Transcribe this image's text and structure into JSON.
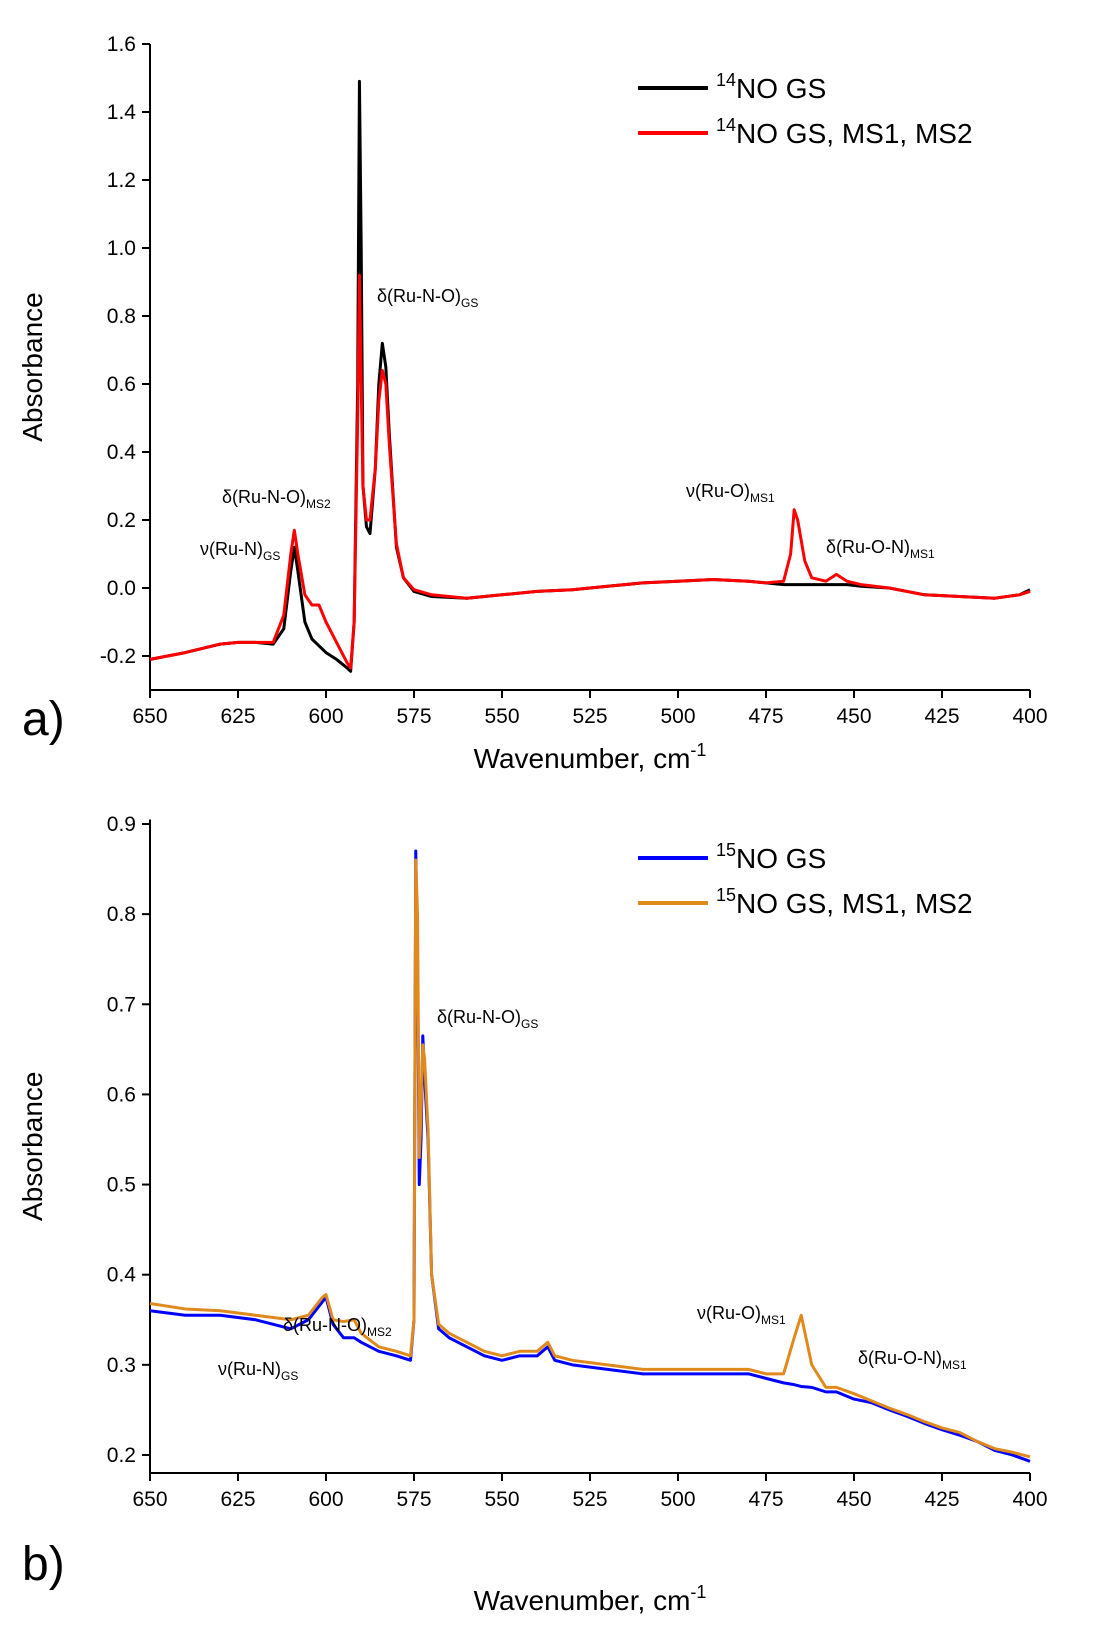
{
  "chart_data": [
    {
      "type": "line",
      "panel": "a)",
      "x_label": "Wavenumber, cm",
      "x_label_sup": "-1",
      "y_label": "Absorbance",
      "xlim": [
        650,
        400
      ],
      "xticks": [
        650,
        625,
        600,
        575,
        550,
        525,
        500,
        475,
        450,
        425,
        400
      ],
      "ylim": [
        -0.3,
        1.6
      ],
      "yticks": [
        -0.2,
        {
          "value": 0,
          "label": "0.0"
        },
        0.2,
        0.4,
        0.6,
        0.8,
        {
          "value": 1,
          "label": "1.0"
        },
        1.2,
        1.4,
        1.6
      ],
      "annotations": [
        {
          "text": "ν(Ru-N)",
          "sub": "GS"
        },
        {
          "text": "δ(Ru-N-O)",
          "sub": "MS2"
        },
        {
          "text": "δ(Ru-N-O)",
          "sub": "GS"
        },
        {
          "text": "ν(Ru-O)",
          "sub": "MS1"
        },
        {
          "text": "δ(Ru-O-N)",
          "sub": "MS1"
        }
      ],
      "x": [
        650,
        640,
        630,
        625,
        620,
        615,
        612,
        610,
        609,
        608,
        606,
        604,
        602,
        600,
        597,
        594,
        593,
        592,
        591,
        590.5,
        590,
        589.5,
        588.5,
        587.5,
        586,
        585,
        584,
        583,
        582,
        580,
        578,
        575,
        570,
        560,
        550,
        540,
        530,
        520,
        510,
        500,
        490,
        480,
        475,
        470,
        468,
        467,
        466,
        464,
        462,
        458,
        455,
        452,
        448,
        440,
        430,
        420,
        410,
        403,
        400
      ],
      "series": [
        {
          "name": "NO GS",
          "name_sup": "14",
          "color": "#000000",
          "values": [
            -0.21,
            -0.19,
            -0.165,
            -0.16,
            -0.16,
            -0.165,
            -0.12,
            0.05,
            0.12,
            0.05,
            -0.1,
            -0.15,
            -0.17,
            -0.19,
            -0.21,
            -0.235,
            -0.245,
            -0.1,
            0.6,
            1.49,
            1.0,
            0.3,
            0.18,
            0.16,
            0.35,
            0.6,
            0.72,
            0.65,
            0.45,
            0.12,
            0.03,
            -0.01,
            -0.025,
            -0.03,
            -0.02,
            -0.01,
            -0.005,
            0.005,
            0.015,
            0.02,
            0.025,
            0.02,
            0.015,
            0.01,
            0.01,
            0.01,
            0.01,
            0.01,
            0.01,
            0.01,
            0.01,
            0.01,
            0.005,
            0,
            -0.02,
            -0.025,
            -0.03,
            -0.02,
            -0.005
          ]
        },
        {
          "name": "NO GS, MS1, MS2",
          "name_sup": "14",
          "color": "#ff0000",
          "values": [
            -0.21,
            -0.19,
            -0.165,
            -0.16,
            -0.16,
            -0.16,
            -0.08,
            0.1,
            0.17,
            0.1,
            -0.02,
            -0.05,
            -0.05,
            -0.1,
            -0.16,
            -0.22,
            -0.235,
            -0.1,
            0.5,
            0.92,
            0.6,
            0.3,
            0.2,
            0.2,
            0.35,
            0.55,
            0.64,
            0.6,
            0.42,
            0.13,
            0.03,
            -0.005,
            -0.02,
            -0.03,
            -0.02,
            -0.01,
            -0.005,
            0.005,
            0.015,
            0.02,
            0.025,
            0.02,
            0.015,
            0.02,
            0.1,
            0.23,
            0.2,
            0.08,
            0.03,
            0.02,
            0.04,
            0.02,
            0.01,
            0,
            -0.02,
            -0.025,
            -0.03,
            -0.02,
            -0.01
          ]
        }
      ]
    },
    {
      "type": "line",
      "panel": "b)",
      "x_label": "Wavenumber, cm",
      "x_label_sup": "-1",
      "y_label": "Absorbance",
      "xlim": [
        650,
        400
      ],
      "xticks": [
        650,
        625,
        600,
        575,
        550,
        525,
        500,
        475,
        450,
        425,
        400
      ],
      "ylim": [
        0.18,
        0.905
      ],
      "yticks": [
        0.2,
        0.3,
        0.4,
        0.5,
        0.6,
        0.7,
        0.8,
        0.9
      ],
      "annotations": [
        {
          "text": "ν(Ru-N)",
          "sub": "GS"
        },
        {
          "text": "δ(Ru-N-O)",
          "sub": "MS2"
        },
        {
          "text": "δ(Ru-N-O)",
          "sub": "GS"
        },
        {
          "text": "ν(Ru-O)",
          "sub": "MS1"
        },
        {
          "text": "δ(Ru-O-N)",
          "sub": "MS1"
        }
      ],
      "x": [
        650,
        640,
        630,
        620,
        610,
        605,
        601,
        600,
        598,
        595,
        592,
        590,
        585,
        580,
        576,
        575,
        574.5,
        574,
        573.5,
        573,
        572.5,
        572,
        571,
        570,
        568,
        565,
        560,
        555,
        550,
        545,
        540,
        537,
        535,
        530,
        520,
        510,
        500,
        490,
        480,
        475,
        470,
        467,
        465,
        462,
        458,
        455,
        450,
        445,
        440,
        435,
        430,
        425,
        420,
        415,
        410,
        405,
        400
      ],
      "series": [
        {
          "name": "NO GS",
          "name_sup": "15",
          "color": "#0000ff",
          "values": [
            0.36,
            0.355,
            0.355,
            0.35,
            0.34,
            0.35,
            0.37,
            0.375,
            0.345,
            0.33,
            0.33,
            0.325,
            0.315,
            0.31,
            0.305,
            0.35,
            0.87,
            0.75,
            0.5,
            0.55,
            0.665,
            0.62,
            0.55,
            0.4,
            0.34,
            0.33,
            0.32,
            0.31,
            0.305,
            0.31,
            0.31,
            0.32,
            0.305,
            0.3,
            0.295,
            0.29,
            0.29,
            0.29,
            0.29,
            0.285,
            0.28,
            0.278,
            0.276,
            0.275,
            0.27,
            0.27,
            0.262,
            0.258,
            0.25,
            0.243,
            0.235,
            0.228,
            0.222,
            0.215,
            0.205,
            0.2,
            0.193
          ]
        },
        {
          "name": "NO GS, MS1, MS2",
          "name_sup": "15",
          "color": "#e08a1e",
          "values": [
            0.368,
            0.362,
            0.36,
            0.355,
            0.35,
            0.355,
            0.375,
            0.378,
            0.35,
            0.348,
            0.35,
            0.335,
            0.32,
            0.315,
            0.31,
            0.35,
            0.86,
            0.8,
            0.53,
            0.58,
            0.655,
            0.64,
            0.56,
            0.4,
            0.345,
            0.335,
            0.325,
            0.315,
            0.31,
            0.315,
            0.315,
            0.325,
            0.31,
            0.305,
            0.3,
            0.295,
            0.295,
            0.295,
            0.295,
            0.29,
            0.29,
            0.33,
            0.355,
            0.3,
            0.275,
            0.275,
            0.268,
            0.26,
            0.252,
            0.245,
            0.237,
            0.23,
            0.225,
            0.215,
            0.207,
            0.203,
            0.198
          ]
        }
      ]
    }
  ]
}
